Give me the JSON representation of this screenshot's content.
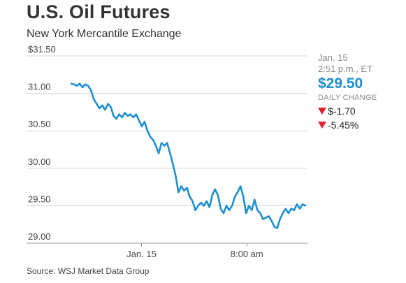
{
  "header": {
    "title": "U.S. Oil Futures",
    "subtitle": "New York Mercantile Exchange"
  },
  "panel": {
    "date": "Jan. 15",
    "time": "2:51 p.m., ET",
    "price": "$29.50",
    "daily_change_label": "DAILY CHANGE",
    "change_abs": "$-1.70",
    "change_pct": "-5.45%",
    "down_color": "#e0202a",
    "price_color": "#1d8fd0"
  },
  "source": "Source: WSJ Market Data Group",
  "chart_data": {
    "type": "line",
    "title": "U.S. Oil Futures",
    "subtitle": "New York Mercantile Exchange",
    "xlabel": "",
    "ylabel": "",
    "ylim": [
      29.0,
      31.5
    ],
    "ytick_values": [
      31.5,
      31.0,
      30.5,
      30.0,
      29.5,
      29.0
    ],
    "ytick_labels": [
      "$31.50",
      "31.00",
      "30.50",
      "30.00",
      "29.50",
      "29.00"
    ],
    "xticks": [
      {
        "label": "Jan. 15",
        "x": 0.3
      },
      {
        "label": "8:00 am",
        "x": 0.75
      }
    ],
    "grid": "horizontal",
    "line_color": "#1d8fd0",
    "series": [
      {
        "values": [
          31.13,
          31.12,
          31.1,
          31.13,
          31.08,
          31.12,
          31.1,
          31.04,
          30.92,
          30.86,
          30.8,
          30.84,
          30.78,
          30.86,
          30.82,
          30.7,
          30.66,
          30.72,
          30.68,
          30.74,
          30.7,
          30.72,
          30.68,
          30.72,
          30.64,
          30.56,
          30.62,
          30.5,
          30.42,
          30.38,
          30.3,
          30.2,
          30.34,
          30.3,
          30.34,
          30.2,
          30.06,
          29.9,
          29.68,
          29.76,
          29.7,
          29.74,
          29.62,
          29.56,
          29.44,
          29.5,
          29.54,
          29.5,
          29.56,
          29.48,
          29.64,
          29.72,
          29.64,
          29.46,
          29.4,
          29.5,
          29.44,
          29.5,
          29.62,
          29.68,
          29.76,
          29.62,
          29.4,
          29.5,
          29.44,
          29.58,
          29.44,
          29.4,
          29.32,
          29.34,
          29.36,
          29.3,
          29.22,
          29.2,
          29.32,
          29.4,
          29.46,
          29.4,
          29.46,
          29.44,
          29.52,
          29.46,
          29.52,
          29.5
        ]
      }
    ]
  }
}
